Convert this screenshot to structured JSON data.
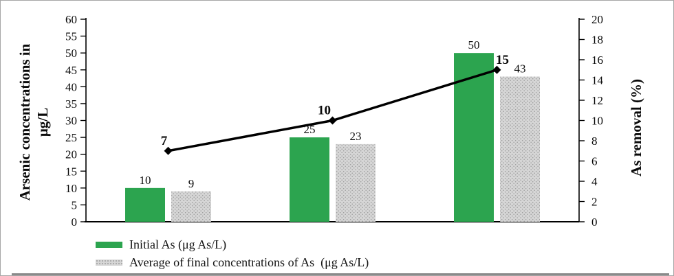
{
  "figure": {
    "left_axis_title_line1": "Arsenic concentrations in",
    "left_axis_title_line2": "μg/L",
    "right_axis_title": "As removal (%)"
  },
  "legend": {
    "items": [
      {
        "label": "Initial As (μg As/L)",
        "swatch_color": "#2CA44F",
        "pattern": "solid"
      },
      {
        "label": "Average of final concentrations of As  (μg As/L)",
        "swatch_color": "#D6D6D6",
        "pattern": "dots"
      }
    ]
  },
  "chart_data": {
    "type": "combo",
    "title": "",
    "grid": false,
    "legend_position": "bottom-left",
    "left_axis": {
      "label": "Arsenic concentrations in μg/L",
      "min": 0,
      "max": 60,
      "step": 5
    },
    "right_axis": {
      "label": "As removal (%)",
      "min": 0,
      "max": 20,
      "step": 2
    },
    "groups": 3,
    "categories": [
      "",
      "",
      ""
    ],
    "series": [
      {
        "name": "Initial As (μg As/L)",
        "type": "bar",
        "axis": "left",
        "color": "#2CA44F",
        "pattern": "solid",
        "values": [
          10,
          25,
          50
        ],
        "data_labels": [
          "10",
          "25",
          "50"
        ]
      },
      {
        "name": "Average of final concentrations of As  (μg As/L)",
        "type": "bar",
        "axis": "left",
        "color": "#D6D6D6",
        "pattern": "dots",
        "values": [
          9,
          23,
          43
        ],
        "data_labels": [
          "9",
          "23",
          "43"
        ]
      },
      {
        "name": "As removal (%)",
        "type": "line",
        "axis": "right",
        "color": "#000000",
        "marker": "diamond",
        "values": [
          7,
          10,
          15
        ],
        "data_labels": [
          "7",
          "10",
          "15"
        ],
        "labels_bold": true
      }
    ]
  }
}
